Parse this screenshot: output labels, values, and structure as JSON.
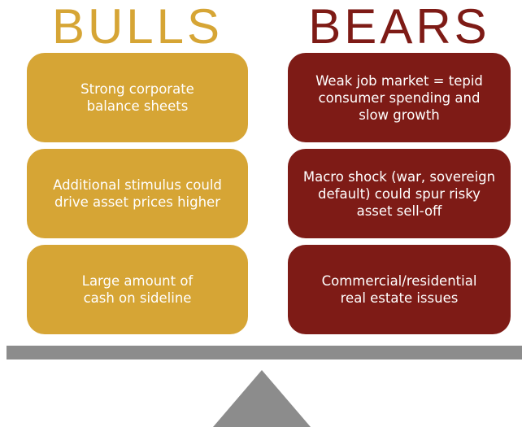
{
  "bulls": {
    "title": "BULLS",
    "items": [
      "Strong corporate balance sheets",
      "Additional stimulus could drive asset prices higher",
      "Large amount of cash on sideline"
    ]
  },
  "bears": {
    "title": "BEARS",
    "items": [
      "Weak job market = tepid consumer spending and slow growth",
      "Macro shock (war, sovereign default) could spur risky asset sell-off",
      "Commercial/residential real estate issues"
    ]
  }
}
